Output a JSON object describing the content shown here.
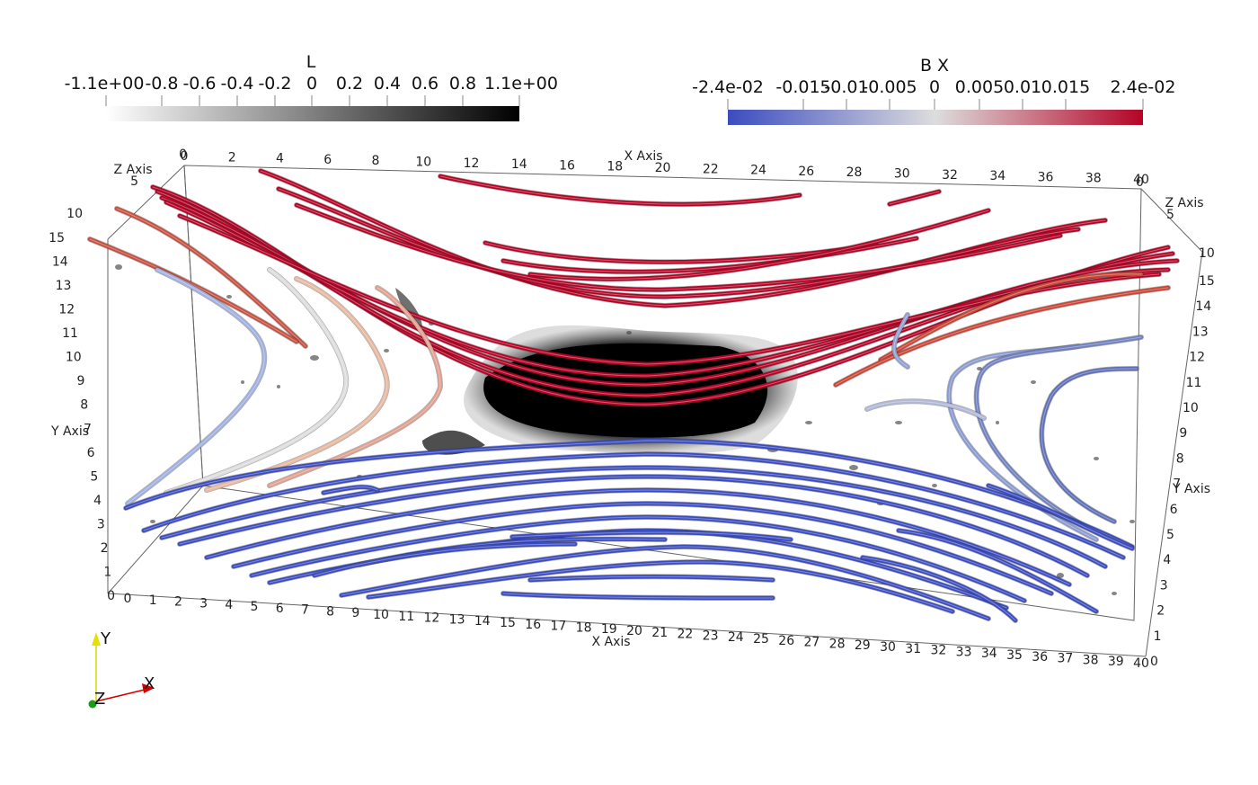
{
  "colorbar_L": {
    "title": "L",
    "labels": [
      "-1.1e+00",
      "-0.8",
      "-0.6",
      "-0.4",
      "-0.2",
      "0",
      "0.2",
      "0.4",
      "0.6",
      "0.8",
      "1.1e+00"
    ],
    "range": [
      -1.1,
      1.1
    ],
    "colors": [
      "#ffffff",
      "#000000"
    ]
  },
  "colorbar_BX": {
    "title": "B X",
    "labels": [
      "-2.4e-02",
      "-0.015",
      "-0.01",
      "-0.005",
      "0",
      "0.005",
      "0.01",
      "0.015",
      "2.4e-02"
    ],
    "range": [
      -0.024,
      0.024
    ],
    "colors": [
      "#3b4cc0",
      "#dddddd",
      "#b40426"
    ]
  },
  "axes": {
    "x_title": "X Axis",
    "y_title": "Y Axis",
    "z_title": "Z Axis",
    "x_ticks_top": [
      "0",
      "2",
      "4",
      "6",
      "8",
      "10",
      "12",
      "14",
      "16",
      "18",
      "20",
      "22",
      "24",
      "26",
      "28",
      "30",
      "32",
      "34",
      "36",
      "38",
      "40"
    ],
    "x_ticks_bottom": [
      "0",
      "1",
      "2",
      "3",
      "4",
      "5",
      "6",
      "7",
      "8",
      "9",
      "10",
      "11",
      "12",
      "13",
      "14",
      "15",
      "16",
      "17",
      "18",
      "19",
      "20",
      "21",
      "22",
      "23",
      "24",
      "25",
      "26",
      "27",
      "28",
      "29",
      "30",
      "31",
      "32",
      "33",
      "34",
      "35",
      "36",
      "37",
      "38",
      "39",
      "40"
    ],
    "y_ticks": [
      "0",
      "1",
      "2",
      "3",
      "4",
      "5",
      "6",
      "7",
      "8",
      "9",
      "10",
      "11",
      "12",
      "13",
      "14",
      "15"
    ],
    "z_ticks": [
      "0",
      "5",
      "10"
    ]
  },
  "orientation": {
    "x": "X",
    "y": "Y",
    "z": "Z"
  },
  "streamline_colors": {
    "low": "#3b4cc0",
    "mid": "#dddddd",
    "high": "#b40426"
  }
}
